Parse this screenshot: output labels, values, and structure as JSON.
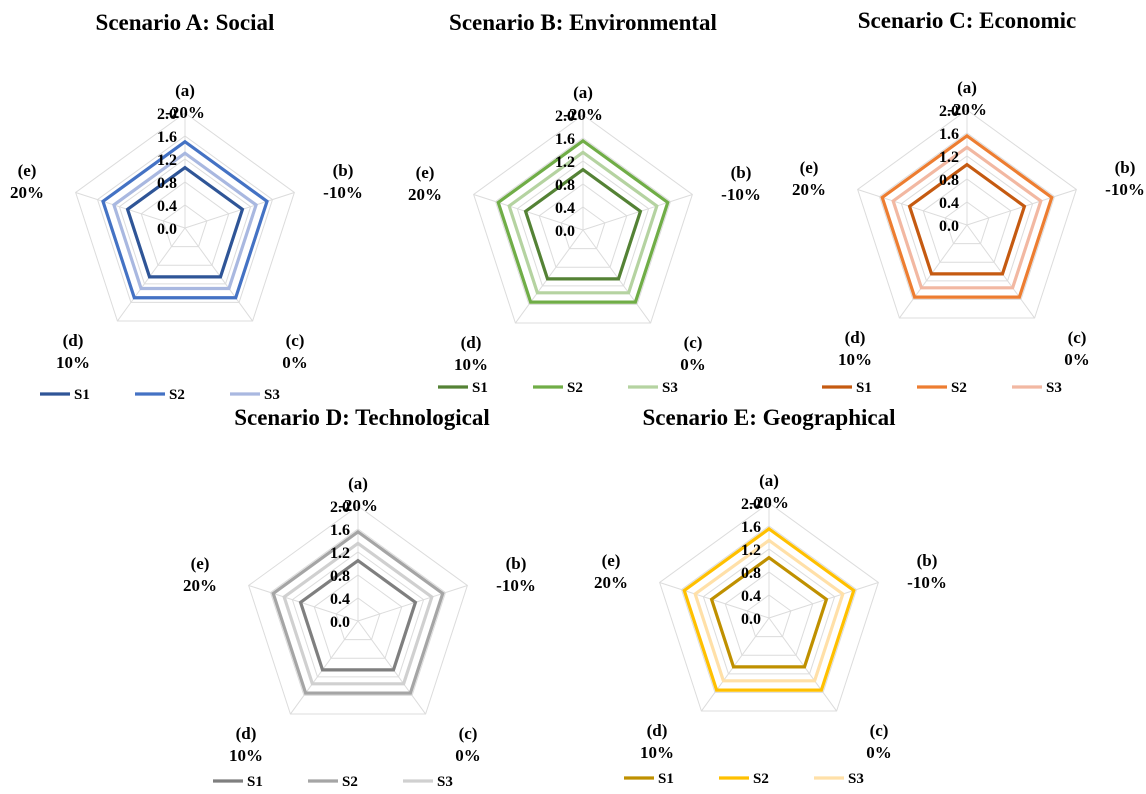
{
  "chart_data": [
    {
      "type": "radar",
      "title": "Scenario A: Social",
      "axes": [
        {
          "id": "(a)",
          "value_label": "-20%"
        },
        {
          "id": "(b)",
          "value_label": "-10%"
        },
        {
          "id": "(c)",
          "value_label": "0%"
        },
        {
          "id": "(d)",
          "value_label": "10%"
        },
        {
          "id": "(e)",
          "value_label": "20%"
        }
      ],
      "r_ticks": [
        "0.0",
        "0.4",
        "0.8",
        "1.2",
        "1.6",
        "2.0"
      ],
      "rlim": [
        0,
        2.0
      ],
      "grid": true,
      "legend": "bottom",
      "series": [
        {
          "name": "S1",
          "color": "#2f5597",
          "values": [
            1.05,
            1.05,
            1.05,
            1.05,
            1.05
          ]
        },
        {
          "name": "S2",
          "color": "#4472c4",
          "values": [
            1.5,
            1.5,
            1.5,
            1.5,
            1.5
          ]
        },
        {
          "name": "S3",
          "color": "#a9b8e0",
          "values": [
            1.3,
            1.3,
            1.3,
            1.3,
            1.3
          ]
        }
      ]
    },
    {
      "type": "radar",
      "title": "Scenario B: Environmental",
      "axes": [
        {
          "id": "(a)",
          "value_label": "-20%"
        },
        {
          "id": "(b)",
          "value_label": "-10%"
        },
        {
          "id": "(c)",
          "value_label": "0%"
        },
        {
          "id": "(d)",
          "value_label": "10%"
        },
        {
          "id": "(e)",
          "value_label": "20%"
        }
      ],
      "r_ticks": [
        "0.0",
        "0.4",
        "0.8",
        "1.2",
        "1.6",
        "2.0"
      ],
      "rlim": [
        0,
        2.0
      ],
      "grid": true,
      "legend": "bottom",
      "series": [
        {
          "name": "S1",
          "color": "#548235",
          "values": [
            1.05,
            1.05,
            1.05,
            1.05,
            1.05
          ]
        },
        {
          "name": "S2",
          "color": "#70ad47",
          "values": [
            1.55,
            1.55,
            1.55,
            1.55,
            1.55
          ]
        },
        {
          "name": "S3",
          "color": "#b5d3a1",
          "values": [
            1.35,
            1.35,
            1.35,
            1.35,
            1.35
          ]
        }
      ]
    },
    {
      "type": "radar",
      "title": "Scenario C: Economic",
      "axes": [
        {
          "id": "(a)",
          "value_label": "-20%"
        },
        {
          "id": "(b)",
          "value_label": "-10%"
        },
        {
          "id": "(c)",
          "value_label": "0%"
        },
        {
          "id": "(d)",
          "value_label": "10%"
        },
        {
          "id": "(e)",
          "value_label": "20%"
        }
      ],
      "r_ticks": [
        "0.0",
        "0.4",
        "0.8",
        "1.2",
        "1.6",
        "2.0"
      ],
      "rlim": [
        0,
        2.0
      ],
      "grid": true,
      "legend": "bottom",
      "series": [
        {
          "name": "S1",
          "color": "#c55a11",
          "values": [
            1.05,
            1.05,
            1.05,
            1.05,
            1.05
          ]
        },
        {
          "name": "S2",
          "color": "#ed7d31",
          "values": [
            1.55,
            1.55,
            1.55,
            1.55,
            1.55
          ]
        },
        {
          "name": "S3",
          "color": "#f2b8a2",
          "values": [
            1.35,
            1.35,
            1.35,
            1.35,
            1.35
          ]
        }
      ]
    },
    {
      "type": "radar",
      "title": "Scenario D: Technological",
      "axes": [
        {
          "id": "(a)",
          "value_label": "-20%"
        },
        {
          "id": "(b)",
          "value_label": "-10%"
        },
        {
          "id": "(c)",
          "value_label": "0%"
        },
        {
          "id": "(d)",
          "value_label": "10%"
        },
        {
          "id": "(e)",
          "value_label": "20%"
        }
      ],
      "r_ticks": [
        "0.0",
        "0.4",
        "0.8",
        "1.2",
        "1.6",
        "2.0"
      ],
      "rlim": [
        0,
        2.0
      ],
      "grid": true,
      "legend": "bottom",
      "series": [
        {
          "name": "S1",
          "color": "#7f7f7f",
          "values": [
            1.05,
            1.05,
            1.05,
            1.05,
            1.05
          ]
        },
        {
          "name": "S2",
          "color": "#a5a5a5",
          "values": [
            1.55,
            1.55,
            1.55,
            1.55,
            1.55
          ]
        },
        {
          "name": "S3",
          "color": "#d0d0d0",
          "values": [
            1.35,
            1.35,
            1.35,
            1.35,
            1.35
          ]
        }
      ]
    },
    {
      "type": "radar",
      "title": "Scenario E: Geographical",
      "axes": [
        {
          "id": "(a)",
          "value_label": "-20%"
        },
        {
          "id": "(b)",
          "value_label": "-10%"
        },
        {
          "id": "(c)",
          "value_label": "0%"
        },
        {
          "id": "(d)",
          "value_label": "10%"
        },
        {
          "id": "(e)",
          "value_label": "20%"
        }
      ],
      "r_ticks": [
        "0.0",
        "0.4",
        "0.8",
        "1.2",
        "1.6",
        "2.0"
      ],
      "rlim": [
        0,
        2.0
      ],
      "grid": true,
      "legend": "bottom",
      "series": [
        {
          "name": "S1",
          "color": "#bf9000",
          "values": [
            1.05,
            1.05,
            1.05,
            1.05,
            1.05
          ]
        },
        {
          "name": "S2",
          "color": "#ffc000",
          "values": [
            1.55,
            1.55,
            1.55,
            1.55,
            1.55
          ]
        },
        {
          "name": "S3",
          "color": "#ffe0a8",
          "values": [
            1.35,
            1.35,
            1.35,
            1.35,
            1.35
          ]
        }
      ]
    }
  ]
}
